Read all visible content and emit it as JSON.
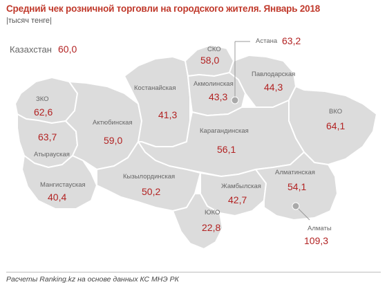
{
  "title": "Средний чек розничной торговли на городского жителя. Январь 2018",
  "unit": "|тысяч тенге|",
  "country": {
    "name": "Казахстан",
    "value": "60,0"
  },
  "regions": {
    "astana": {
      "name": "Астана",
      "value": "63,2"
    },
    "sko": {
      "name": "СКО",
      "value": "58,0"
    },
    "pavlodar": {
      "name": "Павлодарская",
      "value": "44,3"
    },
    "akmola": {
      "name": "Акмолинская",
      "value": "43,3"
    },
    "kostanay": {
      "name": "Костанайская",
      "value": "41,3"
    },
    "zko": {
      "name": "ЗКО",
      "value": "62,6"
    },
    "aktobe": {
      "name": "Актюбинская",
      "value": "59,0"
    },
    "atyrau": {
      "name": "Атырауская",
      "value": "63,7"
    },
    "vko": {
      "name": "ВКО",
      "value": "64,1"
    },
    "karaganda": {
      "name": "Карагандинская",
      "value": "56,1"
    },
    "mangystau": {
      "name": "Мангистауская",
      "value": "40,4"
    },
    "kyzylorda": {
      "name": "Кызылординская",
      "value": "50,2"
    },
    "almaty_reg": {
      "name": "Алматинская",
      "value": "54,1"
    },
    "zhambyl": {
      "name": "Жамбылская",
      "value": "42,7"
    },
    "yuko": {
      "name": "ЮКО",
      "value": "22,8"
    },
    "almaty": {
      "name": "Алматы",
      "value": "109,3"
    }
  },
  "footer": "Расчеты Ranking.kz на основе данных КС МНЭ РК",
  "colors": {
    "region_fill": "#dcdcdc",
    "border": "#ffffff",
    "value": "#b22222",
    "title": "#c0392b",
    "city_marker": "#a9a9a9"
  }
}
